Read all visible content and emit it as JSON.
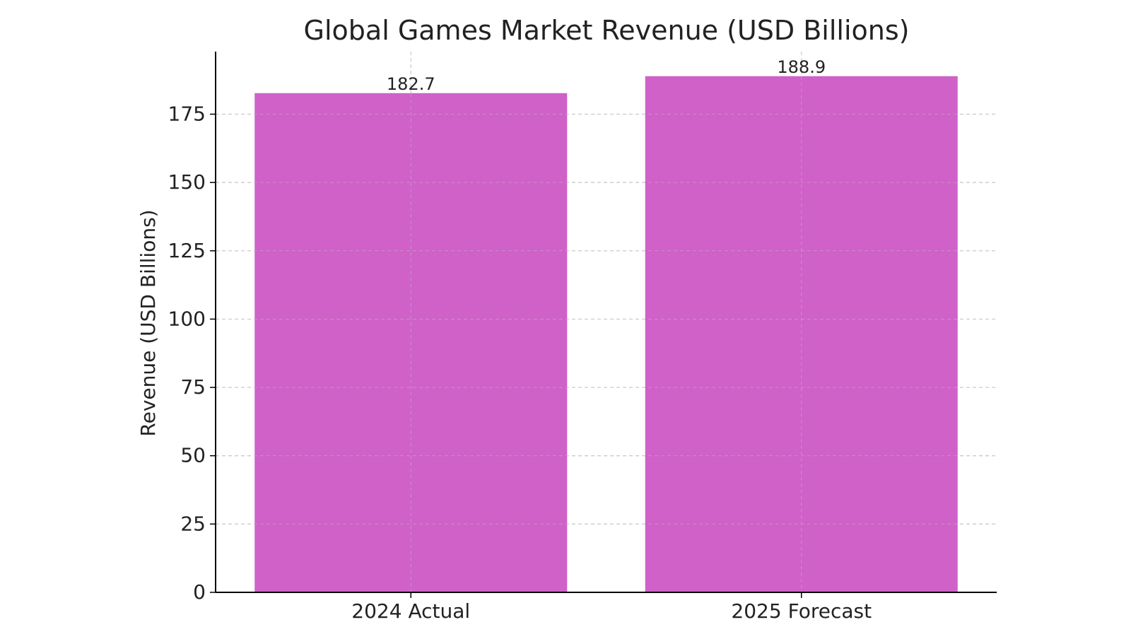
{
  "chart_data": {
    "type": "bar",
    "title": "Global Games Market Revenue (USD Billions)",
    "xlabel": "",
    "ylabel": "Revenue (USD Billions)",
    "categories": [
      "2024 Actual",
      "2025 Forecast"
    ],
    "values": [
      182.7,
      188.9
    ],
    "data_labels": [
      "182.7",
      "188.9"
    ],
    "y_ticks": [
      0,
      25,
      50,
      75,
      100,
      125,
      150,
      175
    ],
    "ylim": [
      0,
      197.9
    ],
    "grid": true,
    "grid_style": "dashed",
    "legend": "none",
    "bar_color": "#cf61c8",
    "axis_color": "#000000",
    "grid_color": "#c8c8c8",
    "text_color": "#222222"
  }
}
